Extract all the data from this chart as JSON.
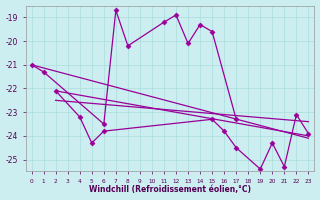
{
  "xlabel": "Windchill (Refroidissement éolien,°C)",
  "bg_color": "#cceef0",
  "grid_color": "#aadddd",
  "line_color": "#990099",
  "ylim": [
    -25.5,
    -18.5
  ],
  "xlim": [
    -0.5,
    23.5
  ],
  "yticks": [
    -25,
    -24,
    -23,
    -22,
    -21,
    -20,
    -19
  ],
  "xticks": [
    0,
    1,
    2,
    3,
    4,
    5,
    6,
    7,
    8,
    9,
    10,
    11,
    12,
    13,
    14,
    15,
    16,
    17,
    18,
    19,
    20,
    21,
    22,
    23
  ],
  "series1_x": [
    0,
    1,
    6,
    7,
    8,
    11,
    12,
    13,
    14,
    15,
    17
  ],
  "series1_y": [
    -21.0,
    -21.3,
    -23.5,
    -18.7,
    -20.2,
    -19.2,
    -18.9,
    -20.1,
    -19.3,
    -19.6,
    -23.3
  ],
  "series2_x": [
    0,
    23
  ],
  "series2_y": [
    -21.0,
    -24.1
  ],
  "series3_x": [
    2,
    23
  ],
  "series3_y": [
    -22.1,
    -24.0
  ],
  "series4_x": [
    2,
    4,
    5,
    6,
    15,
    16,
    17,
    19,
    20,
    21,
    22,
    23
  ],
  "series4_y": [
    -22.1,
    -23.2,
    -24.3,
    -23.8,
    -23.3,
    -23.8,
    -24.5,
    -25.4,
    -24.3,
    -25.3,
    -23.1,
    -23.9
  ],
  "series5_x": [
    2,
    23
  ],
  "series5_y": [
    -22.5,
    -23.4
  ]
}
